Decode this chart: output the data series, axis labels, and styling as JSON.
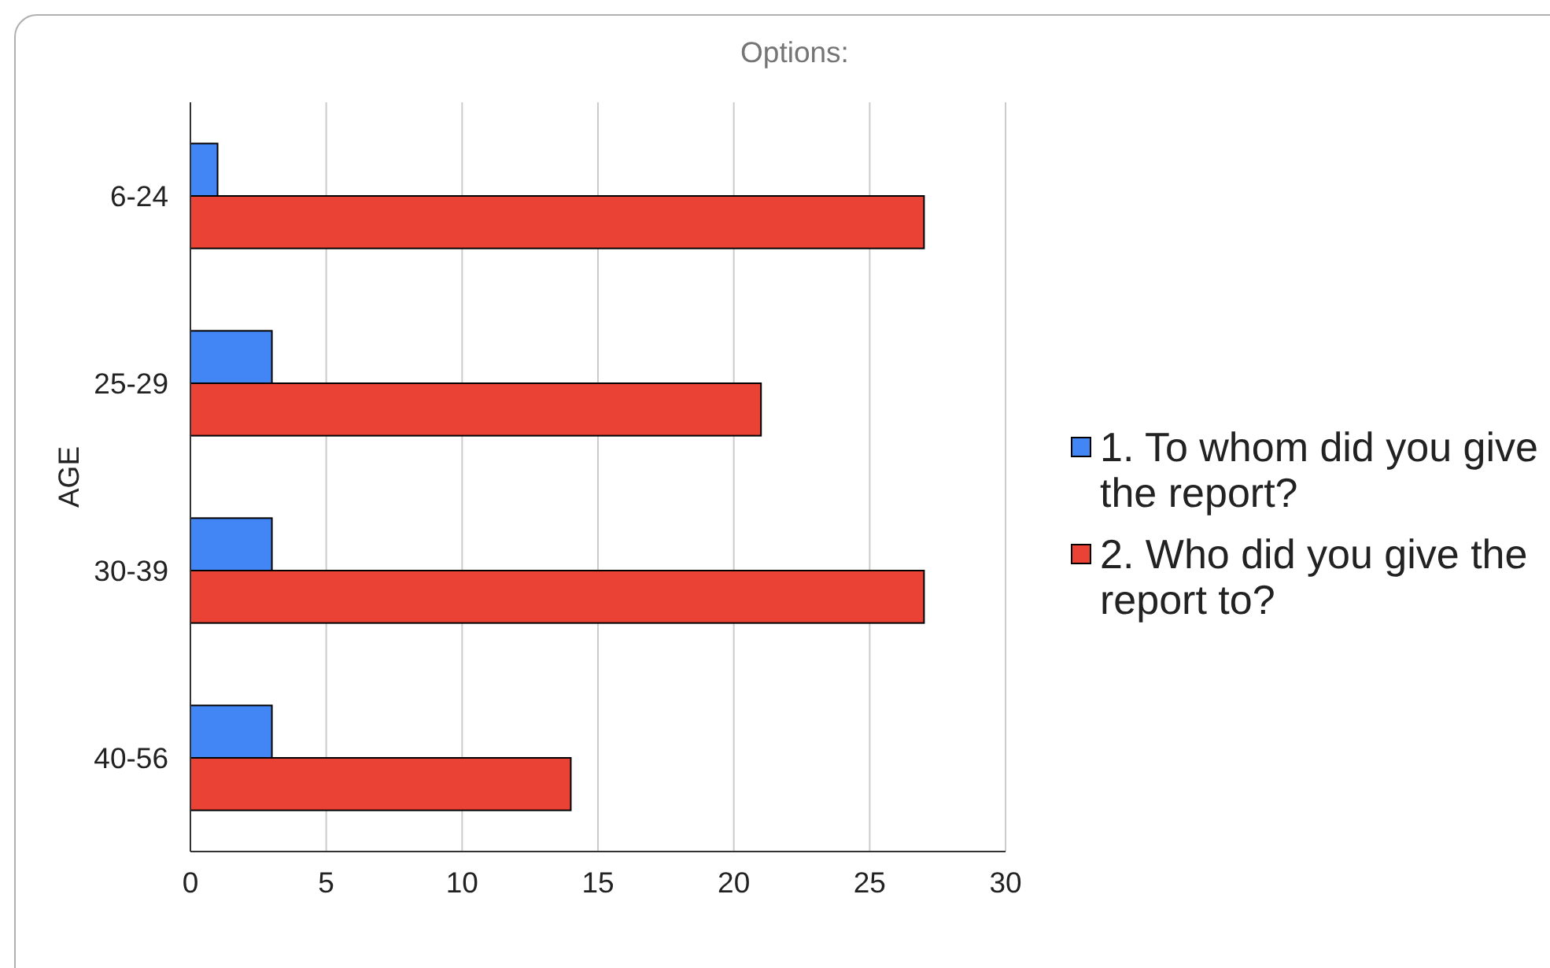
{
  "chart_data": {
    "type": "bar",
    "orientation": "horizontal",
    "title": "Options:",
    "ylabel": "AGE",
    "categories": [
      "6-24",
      "25-29",
      "30-39",
      "40-56"
    ],
    "series": [
      {
        "name": "1. To whom did you give the report?",
        "color": "#4285f4",
        "values": [
          1,
          3,
          3,
          3
        ]
      },
      {
        "name": "2. Who did you give the report to?",
        "color": "#ea4335",
        "values": [
          27,
          21,
          27,
          14
        ]
      }
    ],
    "xlim": [
      0,
      30
    ],
    "xticks": [
      0,
      5,
      10,
      15,
      20,
      25,
      30
    ],
    "grid": "x",
    "legend": "right"
  }
}
